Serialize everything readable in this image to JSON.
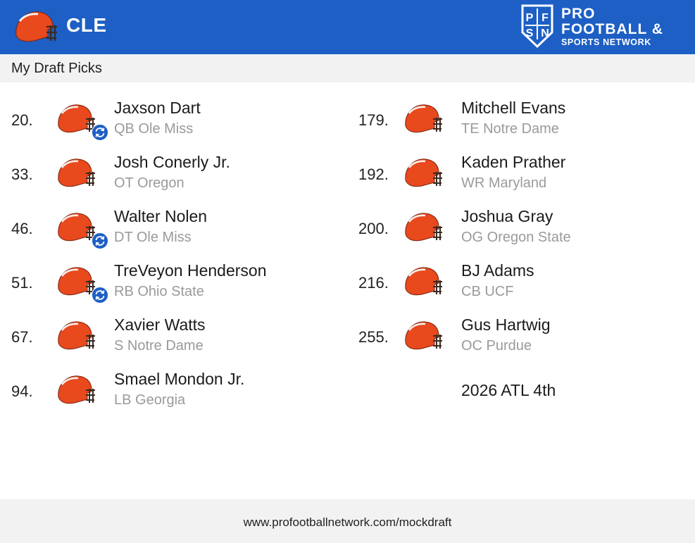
{
  "header": {
    "team_abbr": "CLE",
    "brand": {
      "monogram": "PFSN",
      "line1": "PRO",
      "line2": "FOOTBALL &",
      "line3": "SPORTS NETWORK"
    }
  },
  "section": {
    "title": "My Draft Picks"
  },
  "picks": [
    {
      "number": "20.",
      "name": "Jaxson Dart",
      "info": "QB Ole Miss",
      "traded": true
    },
    {
      "number": "33.",
      "name": "Josh Conerly Jr.",
      "info": "OT Oregon",
      "traded": false
    },
    {
      "number": "46.",
      "name": "Walter Nolen",
      "info": "DT Ole Miss",
      "traded": true
    },
    {
      "number": "51.",
      "name": "TreVeyon Henderson",
      "info": "RB Ohio State",
      "traded": true
    },
    {
      "number": "67.",
      "name": "Xavier Watts",
      "info": "S Notre Dame",
      "traded": false
    },
    {
      "number": "94.",
      "name": "Smael Mondon Jr.",
      "info": "LB Georgia",
      "traded": false
    },
    {
      "number": "179.",
      "name": "Mitchell Evans",
      "info": "TE Notre Dame",
      "traded": false
    },
    {
      "number": "192.",
      "name": "Kaden Prather",
      "info": "WR Maryland",
      "traded": false
    },
    {
      "number": "200.",
      "name": "Joshua Gray",
      "info": "OG Oregon State",
      "traded": false
    },
    {
      "number": "216.",
      "name": "BJ Adams",
      "info": "CB UCF",
      "traded": false
    },
    {
      "number": "255.",
      "name": "Gus Hartwig",
      "info": "OC Purdue",
      "traded": false
    }
  ],
  "future_pick": "2026 ATL 4th",
  "footer": {
    "url": "www.profootballnetwork.com/mockdraft"
  },
  "colors": {
    "header_bg": "#1d5fc4",
    "helmet_orange": "#e8491d",
    "trade_icon_blue": "#1d5fc4",
    "muted_text": "#9a9a9a"
  },
  "icons": {
    "helmet": "helmet-icon",
    "trade": "trade-icon"
  }
}
